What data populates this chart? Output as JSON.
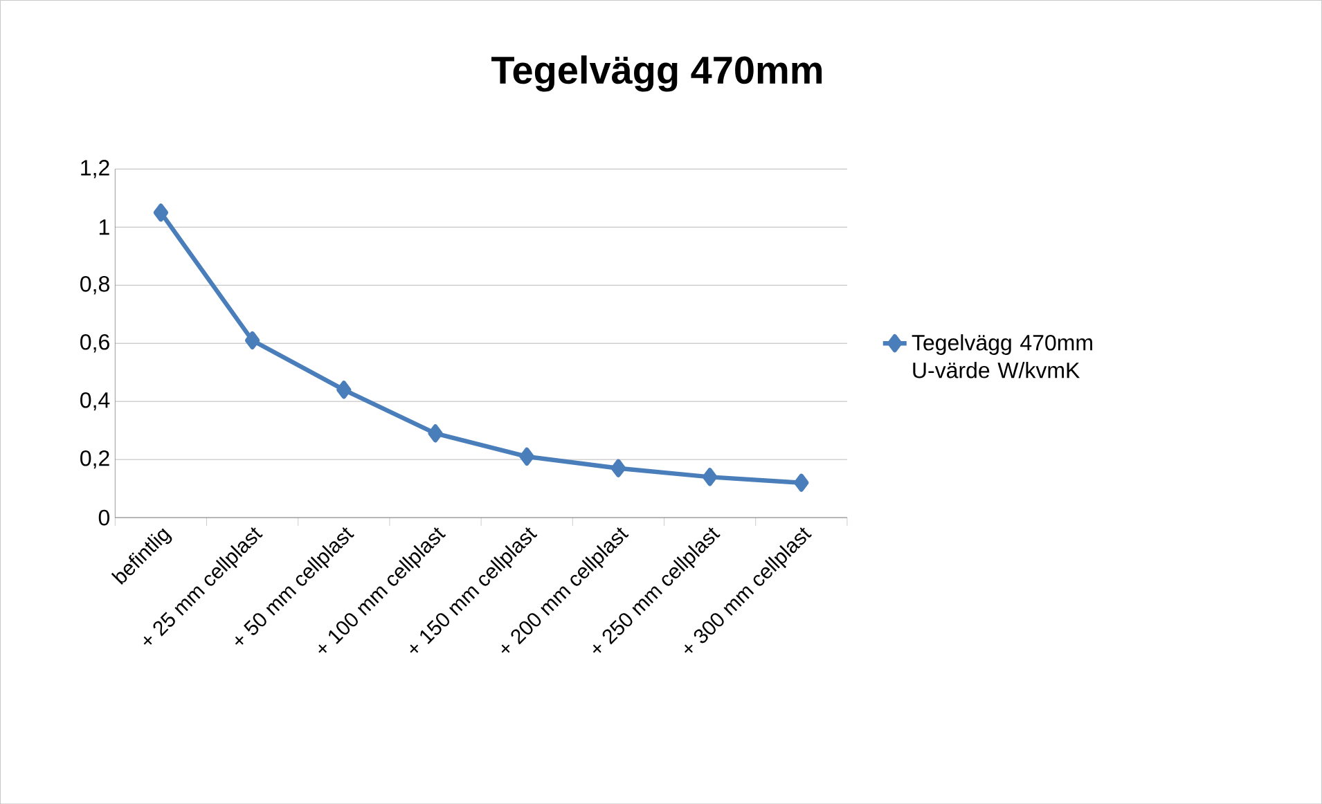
{
  "chart_data": {
    "type": "line",
    "title": "Tegelvägg 470mm",
    "categories": [
      "befintlig",
      "+ 25 mm cellplast",
      "+ 50 mm cellplast",
      "+ 100 mm cellplast",
      "+ 150 mm cellplast",
      "+ 200 mm cellplast",
      "+ 250 mm cellplast",
      "+ 300 mm cellplast"
    ],
    "series": [
      {
        "name": "Tegelvägg 470mm U-värde W/kvmK",
        "color": "#4a7ebb",
        "values": [
          1.05,
          0.61,
          0.44,
          0.29,
          0.21,
          0.17,
          0.14,
          0.12
        ]
      }
    ],
    "ylim": [
      0,
      1.2
    ],
    "yticks": [
      0,
      {
        "value": 0.2,
        "label": "0,2"
      },
      {
        "value": 0.4,
        "label": "0,4"
      },
      {
        "value": 0.6,
        "label": "0,6"
      },
      {
        "value": 0.8,
        "label": "0,8"
      },
      1,
      {
        "value": 1.2,
        "label": "1,2"
      }
    ],
    "grid": "y",
    "legend": "right",
    "marker": "diamond",
    "line_style": "solid"
  }
}
